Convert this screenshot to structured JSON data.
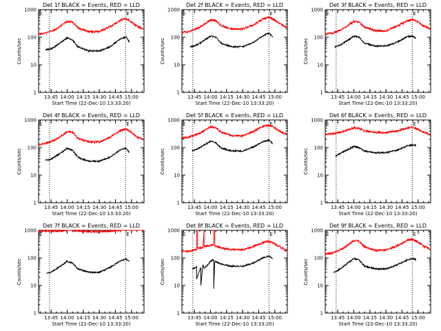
{
  "figure": {
    "background": "#ffffff",
    "axis_color": "#000000",
    "events_color": "#000000",
    "lld_color": "#ff0000",
    "marker_color": "#000000"
  },
  "chart_data": [
    {
      "type": "line",
      "title": "Det 1f BLACK = Events, RED = LLD",
      "xlabel": "Start Time (22-Dec-10 13:33:20)",
      "ylabel": "Counts/sec",
      "x_range": [
        "13:33:20",
        "15:11:40"
      ],
      "x_ticks": [
        "13:45",
        "14:00",
        "14:15",
        "14:30",
        "14:45",
        "15:00"
      ],
      "y_log": true,
      "ylim": [
        1,
        1000
      ],
      "y_ticks": [
        "1",
        "10",
        "100",
        "1000"
      ],
      "markers": [
        "13:43:30",
        "14:54:30"
      ],
      "marker_label": "E",
      "series": [
        {
          "key": "lld",
          "x": [
            "13:33:20",
            "13:40",
            "13:50",
            "14:00",
            "14:05",
            "14:10",
            "14:20",
            "14:30",
            "14:40",
            "14:50",
            "14:55",
            "15:00",
            "15:05",
            "15:11"
          ],
          "values": [
            130,
            140,
            200,
            380,
            360,
            220,
            160,
            160,
            240,
            420,
            470,
            360,
            250,
            200
          ]
        },
        {
          "key": "events",
          "x": [
            "13:40",
            "13:45",
            "13:50",
            "14:00",
            "14:05",
            "14:10",
            "14:20",
            "14:30",
            "14:40",
            "14:50",
            "14:55",
            "14:58"
          ],
          "values": [
            35,
            38,
            50,
            95,
            80,
            45,
            32,
            32,
            45,
            90,
            100,
            65
          ]
        }
      ]
    },
    {
      "type": "line",
      "title": "Det 2f BLACK = Events, RED = LLD",
      "xlabel": "Start Time (22-Dec-10 13:33:20)",
      "ylabel": "Counts/sec",
      "x_range": [
        "13:33:20",
        "15:11:40"
      ],
      "x_ticks": [
        "13:45",
        "14:00",
        "14:15",
        "14:30",
        "14:45",
        "15:00"
      ],
      "y_log": true,
      "ylim": [
        1,
        1000
      ],
      "y_ticks": [
        "1",
        "10",
        "100",
        "1000"
      ],
      "markers": [
        "13:43:30",
        "14:54:30"
      ],
      "marker_label": "E",
      "series": [
        {
          "key": "lld",
          "x": [
            "13:33:20",
            "13:40",
            "13:50",
            "14:00",
            "14:05",
            "14:10",
            "14:20",
            "14:30",
            "14:40",
            "14:50",
            "14:55",
            "15:00",
            "15:05",
            "15:11"
          ],
          "values": [
            150,
            160,
            230,
            420,
            400,
            260,
            200,
            200,
            280,
            480,
            520,
            420,
            300,
            230
          ]
        },
        {
          "key": "events",
          "x": [
            "13:41",
            "13:45",
            "13:50",
            "14:00",
            "14:05",
            "14:10",
            "14:20",
            "14:30",
            "14:40",
            "14:50",
            "14:55",
            "14:58"
          ],
          "values": [
            45,
            48,
            60,
            110,
            100,
            60,
            45,
            45,
            65,
            120,
            140,
            100
          ]
        }
      ]
    },
    {
      "type": "line",
      "title": "Det 3f BLACK = Events, RED = LLD",
      "xlabel": "Start Time (22-Dec-10 13:33:20)",
      "ylabel": "Counts/sec",
      "x_range": [
        "13:33:20",
        "15:11:40"
      ],
      "x_ticks": [
        "13:45",
        "14:00",
        "14:15",
        "14:30",
        "14:45",
        "15:00"
      ],
      "y_log": true,
      "ylim": [
        1,
        1000
      ],
      "y_ticks": [
        "1",
        "10",
        "100",
        "1000"
      ],
      "markers": [
        "13:43:30",
        "14:54:30"
      ],
      "marker_label": "E",
      "series": [
        {
          "key": "lld",
          "x": [
            "13:33:20",
            "13:40",
            "13:50",
            "14:00",
            "14:05",
            "14:10",
            "14:20",
            "14:30",
            "14:40",
            "14:50",
            "14:55",
            "15:00",
            "15:05",
            "15:11"
          ],
          "values": [
            130,
            140,
            200,
            380,
            360,
            230,
            170,
            170,
            250,
            400,
            430,
            350,
            260,
            200
          ]
        },
        {
          "key": "events",
          "x": [
            "13:42",
            "13:45",
            "13:50",
            "14:00",
            "14:05",
            "14:10",
            "14:20",
            "14:30",
            "14:40",
            "14:50",
            "14:55",
            "14:58"
          ],
          "values": [
            45,
            48,
            60,
            110,
            100,
            60,
            48,
            48,
            65,
            105,
            110,
            90
          ]
        }
      ]
    },
    {
      "type": "line",
      "title": "Det 4f BLACK = Events, RED = LLD",
      "xlabel": "Start Time (22-Dec-10 13:33:20)",
      "ylabel": "Counts/sec",
      "x_range": [
        "13:33:20",
        "15:11:40"
      ],
      "x_ticks": [
        "13:45",
        "14:00",
        "14:15",
        "14:30",
        "14:45",
        "15:00"
      ],
      "y_log": true,
      "ylim": [
        1,
        1000
      ],
      "y_ticks": [
        "1",
        "10",
        "100",
        "1000"
      ],
      "markers": [
        "13:43:30",
        "14:54:30"
      ],
      "marker_label": "E",
      "series": [
        {
          "key": "lld",
          "x": [
            "13:33:20",
            "13:40",
            "13:50",
            "14:00",
            "14:05",
            "14:10",
            "14:20",
            "14:30",
            "14:40",
            "14:50",
            "14:55",
            "15:00",
            "15:05",
            "15:11"
          ],
          "values": [
            130,
            140,
            200,
            380,
            360,
            220,
            160,
            160,
            240,
            420,
            460,
            360,
            250,
            190
          ]
        },
        {
          "key": "events",
          "x": [
            "13:40",
            "13:45",
            "13:50",
            "14:00",
            "14:05",
            "14:10",
            "14:20",
            "14:30",
            "14:40",
            "14:50",
            "14:55",
            "14:58"
          ],
          "values": [
            35,
            38,
            50,
            95,
            80,
            45,
            32,
            32,
            45,
            85,
            95,
            65
          ]
        }
      ]
    },
    {
      "type": "line",
      "title": "Det 5f BLACK = Events, RED = LLD",
      "xlabel": "Start Time (22-Dec-10 13:33:20)",
      "ylabel": "Counts/sec",
      "x_range": [
        "13:33:20",
        "15:11:40"
      ],
      "x_ticks": [
        "13:45",
        "14:00",
        "14:15",
        "14:30",
        "14:45",
        "15:00"
      ],
      "y_log": true,
      "ylim": [
        1,
        1000
      ],
      "y_ticks": [
        "1",
        "10",
        "100",
        "1000"
      ],
      "markers": [
        "13:43:30",
        "14:54:30"
      ],
      "marker_label": "E",
      "series": [
        {
          "key": "lld",
          "x": [
            "13:33:20",
            "13:40",
            "13:50",
            "14:00",
            "14:05",
            "14:10",
            "14:20",
            "14:30",
            "14:40",
            "14:50",
            "14:55",
            "15:00",
            "15:05",
            "15:11"
          ],
          "values": [
            220,
            240,
            330,
            580,
            540,
            360,
            270,
            270,
            380,
            620,
            640,
            520,
            380,
            300
          ]
        },
        {
          "key": "events",
          "x": [
            "13:43",
            "13:45",
            "13:50",
            "14:00",
            "14:05",
            "14:10",
            "14:20",
            "14:30",
            "14:40",
            "14:50",
            "14:55",
            "14:58"
          ],
          "values": [
            75,
            80,
            100,
            170,
            150,
            95,
            75,
            75,
            105,
            170,
            185,
            140
          ]
        }
      ]
    },
    {
      "type": "line",
      "title": "Det 6f BLACK = Events, RED = LLD",
      "xlabel": "Start Time (22-Dec-10 13:33:20)",
      "ylabel": "Counts/sec",
      "x_range": [
        "13:33:20",
        "15:11:40"
      ],
      "x_ticks": [
        "13:45",
        "14:00",
        "14:15",
        "14:30",
        "14:45",
        "15:00"
      ],
      "y_log": true,
      "ylim": [
        1,
        1000
      ],
      "y_ticks": [
        "1",
        "10",
        "100",
        "1000"
      ],
      "markers": [
        "13:43:30",
        "14:54:30"
      ],
      "marker_label": "E",
      "series": [
        {
          "key": "lld",
          "x": [
            "13:33:20",
            "13:40",
            "13:50",
            "14:00",
            "14:05",
            "14:10",
            "14:20",
            "14:30",
            "14:40",
            "14:50",
            "14:55",
            "15:00",
            "15:05",
            "15:11"
          ],
          "values": [
            300,
            320,
            380,
            520,
            500,
            400,
            350,
            350,
            400,
            520,
            560,
            460,
            360,
            300
          ]
        },
        {
          "key": "events",
          "x": [
            "13:43",
            "13:45",
            "13:50",
            "14:00",
            "14:05",
            "14:10",
            "14:20",
            "14:30",
            "14:40",
            "14:50",
            "14:55",
            "14:58"
          ],
          "values": [
            50,
            55,
            70,
            110,
            100,
            75,
            65,
            65,
            80,
            115,
            125,
            120
          ]
        }
      ]
    },
    {
      "type": "line",
      "title": "Det 7f BLACK = Events, RED = LLD",
      "xlabel": "Start Time (22-Dec-10 13:33:20)",
      "ylabel": "Counts/sec",
      "x_range": [
        "13:33:20",
        "15:11:40"
      ],
      "x_ticks": [
        "13:45",
        "14:00",
        "14:15",
        "14:30",
        "14:45",
        "15:00"
      ],
      "y_log": true,
      "ylim": [
        1,
        1000
      ],
      "y_ticks": [
        "1",
        "10",
        "100",
        "1000"
      ],
      "markers": [
        "13:43:30",
        "14:54:30"
      ],
      "marker_label": "E",
      "series": [
        {
          "key": "lld",
          "x": [
            "13:33:20",
            "13:40",
            "13:50",
            "14:00",
            "14:05",
            "14:10",
            "14:20",
            "14:30",
            "14:40",
            "14:50",
            "14:55",
            "15:00",
            "15:05",
            "15:11"
          ],
          "values": [
            900,
            950,
            950,
            1000,
            1000,
            950,
            900,
            900,
            950,
            1000,
            1000,
            1000,
            1000,
            1000
          ]
        },
        {
          "key": "events",
          "x": [
            "13:41",
            "13:45",
            "13:50",
            "14:00",
            "14:05",
            "14:10",
            "14:20",
            "14:30",
            "14:40",
            "14:50",
            "14:55",
            "14:58"
          ],
          "values": [
            28,
            30,
            40,
            75,
            65,
            40,
            30,
            30,
            45,
            80,
            90,
            75
          ]
        }
      ]
    },
    {
      "type": "line",
      "title": "Det 8f BLACK = Events, RED = LLD",
      "xlabel": "Start Time (22-Dec-10 13:33:20)",
      "ylabel": "Counts/sec",
      "x_range": [
        "13:33:20",
        "15:11:40"
      ],
      "x_ticks": [
        "13:45",
        "14:00",
        "14:15",
        "14:30",
        "14:45",
        "15:00"
      ],
      "y_log": true,
      "ylim": [
        1,
        1000
      ],
      "y_ticks": [
        "1",
        "10",
        "100",
        "1000"
      ],
      "markers": [
        "13:43:30",
        "14:54:30"
      ],
      "marker_label": "E",
      "series": [
        {
          "key": "lld",
          "x": [
            "13:33:20",
            "13:40",
            "13:47",
            "13:47",
            "13:48",
            "13:48",
            "13:53",
            "13:54",
            "13:54",
            "14:00",
            "14:03",
            "14:03",
            "14:04",
            "14:04",
            "14:10",
            "14:20",
            "14:30",
            "14:40",
            "14:50",
            "14:55",
            "15:00",
            "15:05",
            "15:11"
          ],
          "values": [
            170,
            175,
            200,
            1000,
            1000,
            220,
            240,
            1000,
            260,
            280,
            290,
            1000,
            1000,
            280,
            230,
            200,
            200,
            260,
            370,
            400,
            320,
            250,
            180
          ]
        },
        {
          "key": "events",
          "x": [
            "13:43",
            "13:46",
            "13:47",
            "13:47",
            "13:51",
            "13:51",
            "13:53",
            "13:54",
            "14:00",
            "14:02",
            "14:03",
            "14:03",
            "14:04",
            "14:10",
            "14:20",
            "14:30",
            "14:40",
            "14:50",
            "14:55",
            "14:58"
          ],
          "values": [
            40,
            45,
            50,
            18,
            45,
            10,
            60,
            40,
            75,
            85,
            80,
            8,
            75,
            60,
            50,
            50,
            65,
            105,
            115,
            95
          ]
        }
      ]
    },
    {
      "type": "line",
      "title": "Det 9f BLACK = Events, RED = LLD",
      "xlabel": "Start Time (22-Dec-10 13:33:20)",
      "ylabel": "Counts/sec",
      "x_range": [
        "13:33:20",
        "15:11:40"
      ],
      "x_ticks": [
        "13:45",
        "14:00",
        "14:15",
        "14:30",
        "14:45",
        "15:00"
      ],
      "y_log": true,
      "ylim": [
        1,
        1000
      ],
      "y_ticks": [
        "1",
        "10",
        "100",
        "1000"
      ],
      "markers": [
        "13:43:30",
        "14:54:30"
      ],
      "marker_label": "E",
      "series": [
        {
          "key": "lld",
          "x": [
            "13:33:20",
            "13:40",
            "13:50",
            "14:00",
            "14:05",
            "14:10",
            "14:20",
            "14:30",
            "14:40",
            "14:50",
            "14:55",
            "15:00",
            "15:05",
            "15:11"
          ],
          "values": [
            140,
            150,
            220,
            420,
            400,
            250,
            190,
            190,
            270,
            440,
            470,
            380,
            270,
            210
          ]
        },
        {
          "key": "events",
          "x": [
            "13:41",
            "13:45",
            "13:50",
            "14:00",
            "14:05",
            "14:10",
            "14:20",
            "14:30",
            "14:40",
            "14:50",
            "14:55",
            "14:58"
          ],
          "values": [
            30,
            35,
            48,
            95,
            85,
            50,
            40,
            40,
            55,
            85,
            95,
            85
          ]
        }
      ]
    }
  ]
}
